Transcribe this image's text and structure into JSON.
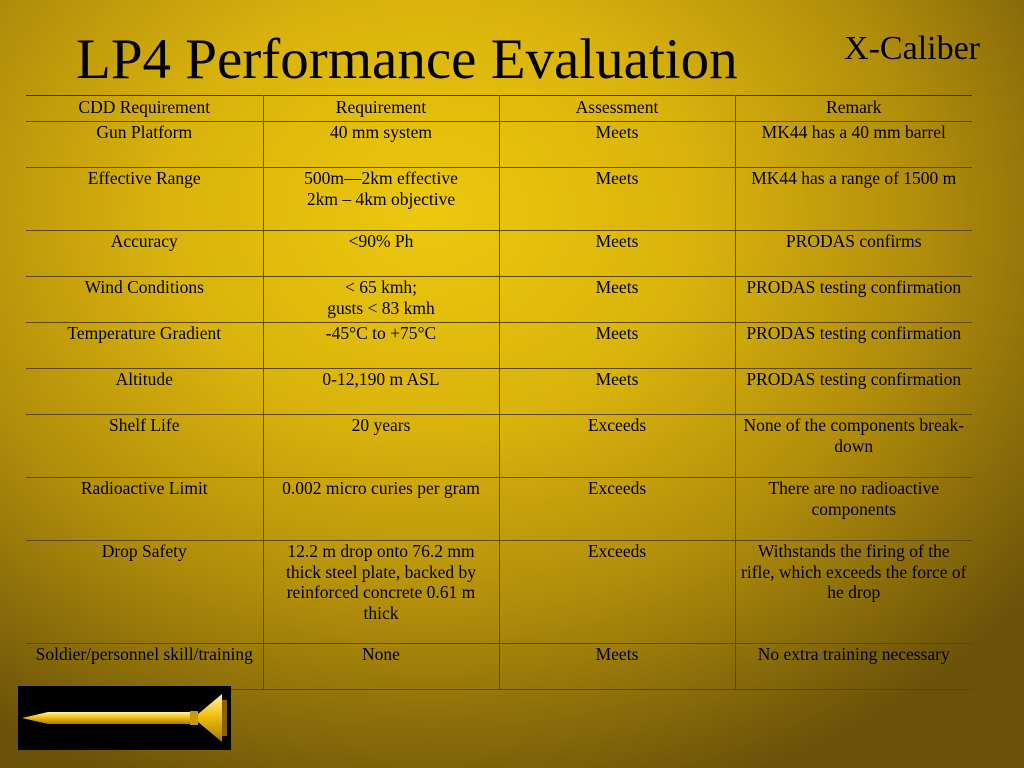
{
  "slide": {
    "title": "LP4 Performance Evaluation",
    "brand": "X-Caliber"
  },
  "colors": {
    "background": "#d9b30c",
    "logo_background": "#000000",
    "bullet": "#f2c010"
  },
  "icons": {
    "logo": "bullet-icon"
  },
  "table": {
    "headers": [
      "CDD Requirement",
      "Requirement",
      "Assessment",
      "Remark"
    ],
    "rows": [
      {
        "cells": [
          "Gun Platform",
          "40 mm system",
          "Meets",
          "MK44 has a 40 mm barrel"
        ]
      },
      {
        "cells": [
          "Effective Range",
          "500m—2km effective\n2km – 4km objective",
          "Meets",
          "MK44 has a range of 1500 m"
        ]
      },
      {
        "cells": [
          "Accuracy",
          "<90% Ph",
          "Meets",
          "PRODAS confirms"
        ]
      },
      {
        "cells": [
          "Wind Conditions",
          "< 65 kmh;\ngusts < 83 kmh",
          "Meets",
          "PRODAS testing confirmation"
        ]
      },
      {
        "cells": [
          "Temperature Gradient",
          "-45°C to +75°C",
          "Meets",
          "PRODAS testing confirmation"
        ]
      },
      {
        "cells": [
          "Altitude",
          "0-12,190 m ASL",
          "Meets",
          "PRODAS testing confirmation"
        ]
      },
      {
        "cells": [
          "Shelf Life",
          "20 years",
          "Exceeds",
          "None of the components break-down"
        ]
      },
      {
        "cells": [
          "Radioactive Limit",
          "0.002 micro curies per gram",
          "Exceeds",
          "There are no radioactive components"
        ]
      },
      {
        "cells": [
          "Drop Safety",
          "12.2 m drop onto 76.2 mm thick steel plate, backed by reinforced concrete 0.61 m thick",
          "Exceeds",
          "Withstands the firing of the rifle, which exceeds the force of he drop"
        ]
      },
      {
        "cells": [
          "Soldier/personnel skill/training",
          "None",
          "Meets",
          "No extra training necessary"
        ]
      }
    ]
  }
}
